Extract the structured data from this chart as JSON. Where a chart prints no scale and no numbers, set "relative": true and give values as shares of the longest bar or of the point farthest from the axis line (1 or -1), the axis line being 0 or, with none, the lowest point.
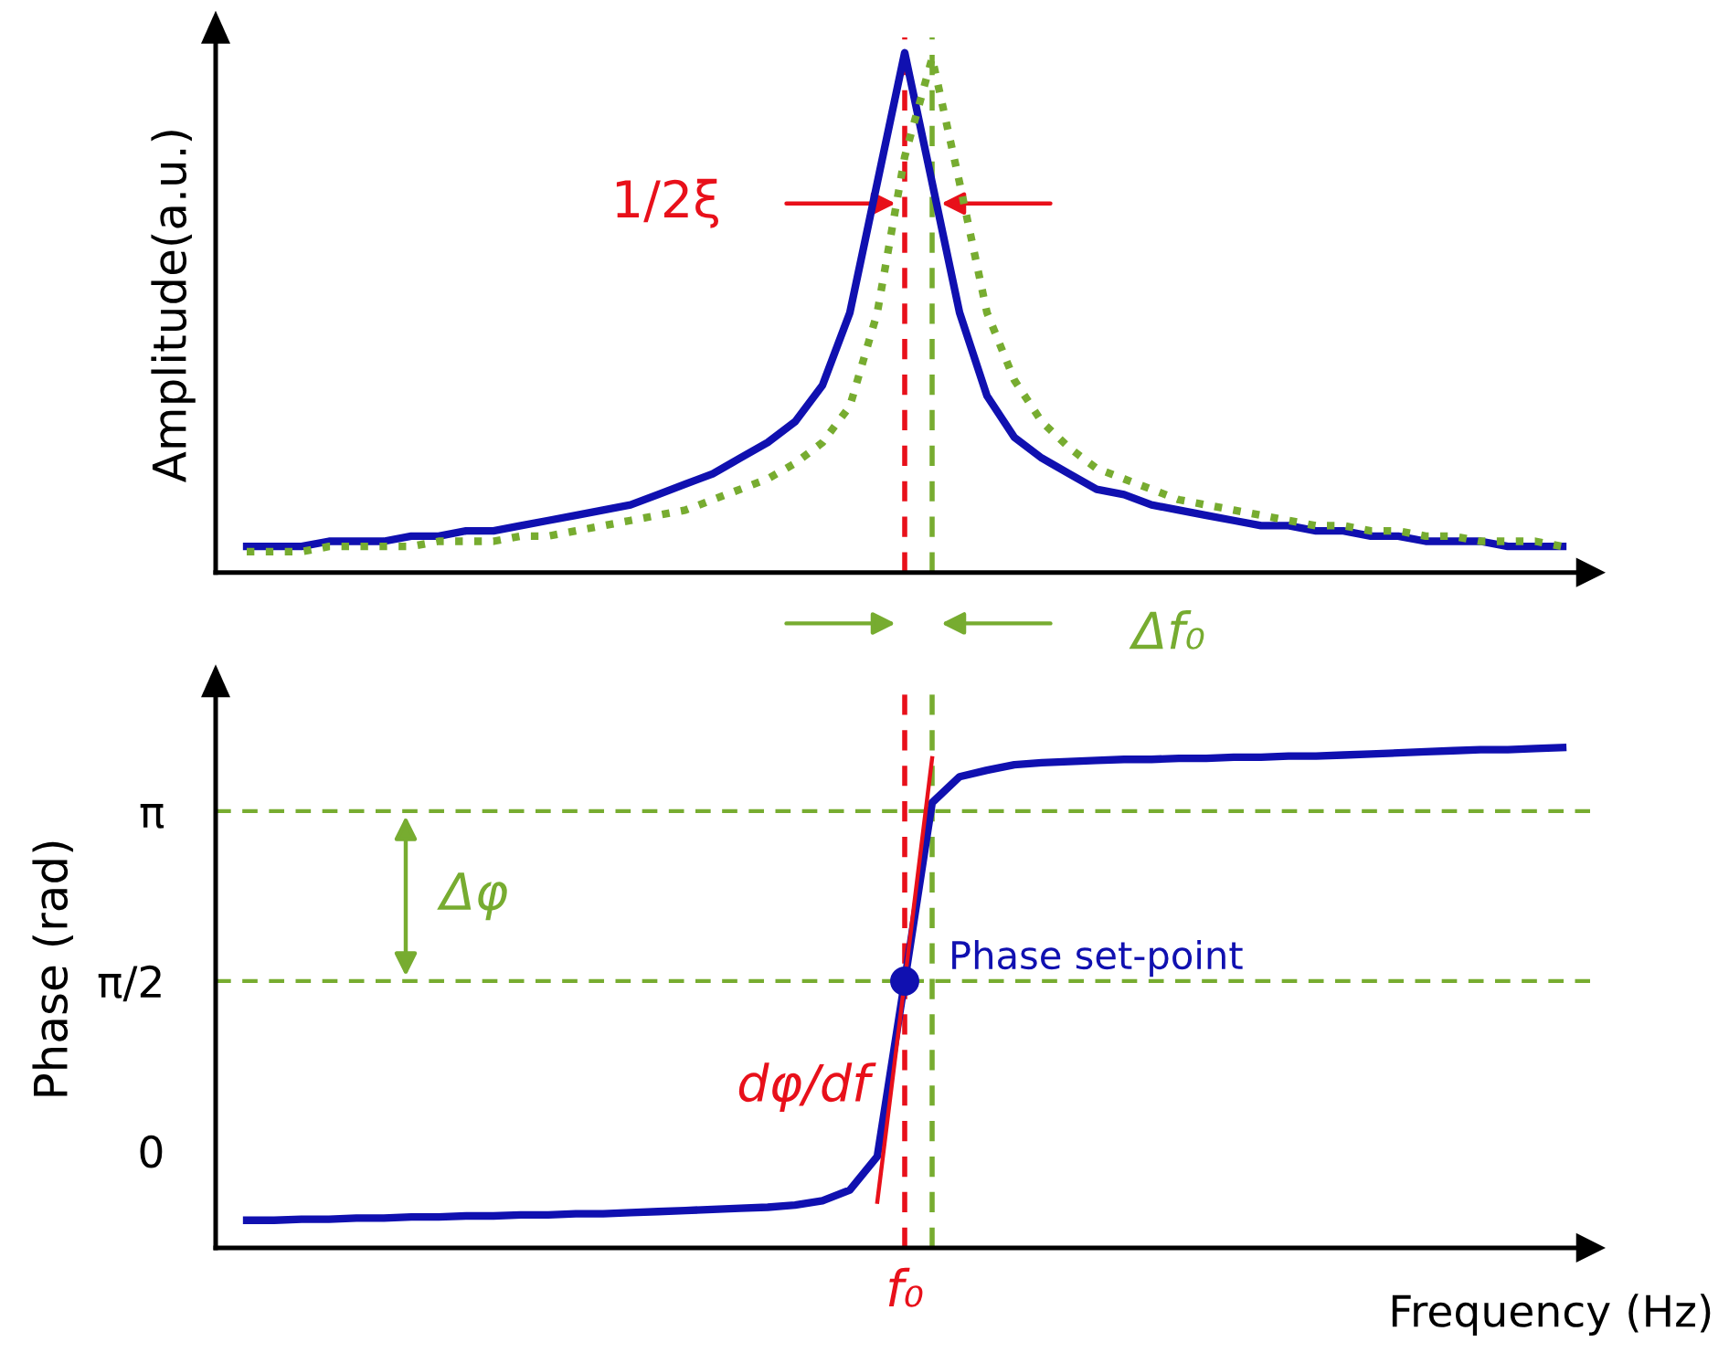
{
  "chart_data": [
    {
      "type": "line",
      "relative": true,
      "ylabel": "Amplitude(a.u.)",
      "tick_labels": false,
      "grid": false,
      "categories": [
        null,
        null,
        null,
        null,
        null,
        null,
        null,
        null,
        null,
        null,
        null,
        null,
        null,
        null,
        null,
        null,
        null,
        null,
        null,
        null,
        null,
        null,
        null,
        null,
        null,
        null,
        null,
        null,
        null,
        null,
        null,
        null,
        null,
        null,
        null,
        null,
        null,
        null,
        null,
        null,
        null,
        null,
        null,
        null,
        null,
        null,
        null,
        null,
        null
      ],
      "series": [
        {
          "color": "#1010b0",
          "line_style": "solid",
          "values": [
            0.05,
            0.05,
            0.05,
            0.06,
            0.06,
            0.06,
            0.07,
            0.07,
            0.08,
            0.08,
            0.09,
            0.1,
            0.11,
            0.12,
            0.13,
            0.15,
            0.17,
            0.19,
            0.22,
            0.25,
            0.29,
            0.36,
            0.5,
            0.75,
            1.0,
            0.75,
            0.5,
            0.34,
            0.26,
            0.22,
            0.19,
            0.16,
            0.15,
            0.13,
            0.12,
            0.11,
            0.1,
            0.09,
            0.09,
            0.08,
            0.08,
            0.07,
            0.07,
            0.06,
            0.06,
            0.06,
            0.05,
            0.05,
            0.05
          ]
        },
        {
          "color": "#77ac30",
          "line_style": "dotted",
          "values": [
            0.04,
            0.04,
            0.04,
            0.05,
            0.05,
            0.05,
            0.05,
            0.06,
            0.06,
            0.06,
            0.07,
            0.07,
            0.08,
            0.09,
            0.1,
            0.11,
            0.12,
            0.14,
            0.16,
            0.18,
            0.21,
            0.25,
            0.32,
            0.5,
            0.8,
            0.99,
            0.75,
            0.5,
            0.37,
            0.29,
            0.24,
            0.2,
            0.18,
            0.16,
            0.14,
            0.13,
            0.12,
            0.11,
            0.1,
            0.09,
            0.09,
            0.08,
            0.08,
            0.07,
            0.07,
            0.06,
            0.06,
            0.06,
            0.05
          ]
        }
      ],
      "annotations": [
        "1/2ξ",
        "Δf₀"
      ]
    },
    {
      "type": "line",
      "ylabel": "Phase (rad)",
      "xlabel": "Frequency (Hz)",
      "ylim": [
        -0.895,
        4.256
      ],
      "tick_labels": "y",
      "grid": false,
      "yticks": [
        {
          "value": 0,
          "label": "0"
        },
        {
          "value": 1.5708,
          "label": "π/2"
        },
        {
          "value": 3.1416,
          "label": "π"
        }
      ],
      "categories": [
        null,
        null,
        null,
        null,
        null,
        null,
        null,
        null,
        null,
        null,
        null,
        null,
        null,
        null,
        null,
        null,
        null,
        null,
        null,
        null,
        null,
        null,
        null,
        null,
        null,
        null,
        null,
        null,
        null,
        null,
        null,
        null,
        null,
        null,
        null,
        null,
        null,
        null,
        null,
        null,
        null,
        null,
        null,
        null,
        null,
        null,
        null,
        null,
        null
      ],
      "series": [
        {
          "color": "#1010b0",
          "line_style": "solid",
          "values": [
            -0.64,
            -0.64,
            -0.63,
            -0.63,
            -0.62,
            -0.62,
            -0.61,
            -0.61,
            -0.6,
            -0.6,
            -0.59,
            -0.59,
            -0.58,
            -0.58,
            -0.57,
            -0.56,
            -0.55,
            -0.54,
            -0.53,
            -0.52,
            -0.5,
            -0.46,
            -0.36,
            -0.05,
            1.57,
            3.22,
            3.46,
            3.52,
            3.57,
            3.59,
            3.6,
            3.61,
            3.62,
            3.62,
            3.63,
            3.63,
            3.64,
            3.64,
            3.65,
            3.65,
            3.66,
            3.67,
            3.68,
            3.69,
            3.7,
            3.71,
            3.71,
            3.72,
            3.73
          ]
        },
        {
          "color": "#e8101a",
          "line_style": "solid",
          "values": [
            null,
            null,
            null,
            null,
            null,
            null,
            null,
            null,
            null,
            null,
            null,
            null,
            null,
            null,
            null,
            null,
            null,
            null,
            null,
            null,
            null,
            null,
            null,
            -0.47,
            1.57,
            3.63,
            null,
            null,
            null,
            null,
            null,
            null,
            null,
            null,
            null,
            null,
            null,
            null,
            null,
            null,
            null,
            null,
            null,
            null,
            null,
            null,
            null,
            null,
            null
          ]
        },
        {
          "type": "scatter",
          "color": "#1010b0",
          "marker": "circle",
          "values": [
            null,
            null,
            null,
            null,
            null,
            null,
            null,
            null,
            null,
            null,
            null,
            null,
            null,
            null,
            null,
            null,
            null,
            null,
            null,
            null,
            null,
            null,
            null,
            null,
            1.57,
            null,
            null,
            null,
            null,
            null,
            null,
            null,
            null,
            null,
            null,
            null,
            null,
            null,
            null,
            null,
            null,
            null,
            null,
            null,
            null,
            null,
            null,
            null,
            null
          ]
        }
      ],
      "ref_lines": [
        {
          "axis": "y",
          "value": 3.1416,
          "color": "#77ac30",
          "line_style": "dashed"
        },
        {
          "axis": "y",
          "value": 1.5708,
          "color": "#77ac30",
          "line_style": "dashed"
        }
      ],
      "annotations": [
        "Δφ",
        "dφ/df",
        "Phase set-point",
        "f₀"
      ]
    }
  ]
}
